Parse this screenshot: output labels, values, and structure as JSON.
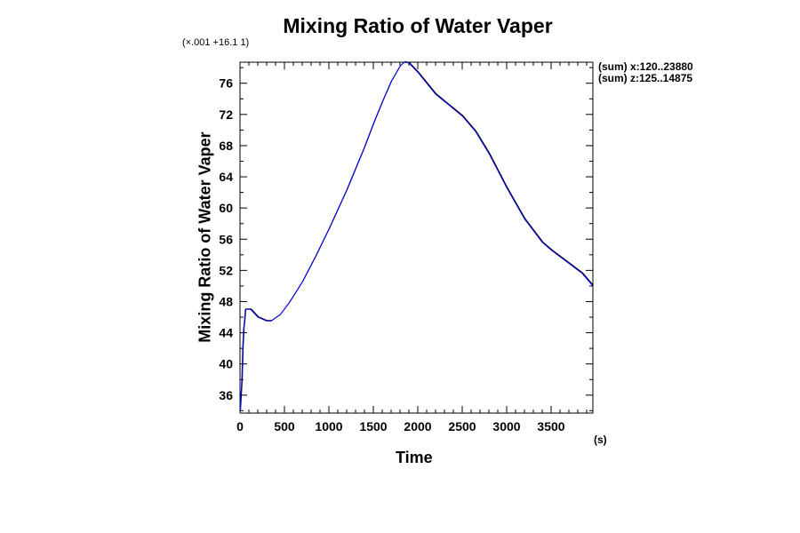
{
  "chart_data": {
    "type": "line",
    "title": "Mixing Ratio of Water Vaper",
    "scale_note": "(×.001 +16.1 1)",
    "annotations": [
      "(sum) x:120..23880",
      "(sum) z:125..14875"
    ],
    "xlabel": "Time",
    "x_unit": "(s)",
    "ylabel": "Mixing Ratio of Water Vaper",
    "xlim": [
      0,
      3970
    ],
    "ylim": [
      33.7,
      78.7
    ],
    "xticks": [
      0,
      500,
      1000,
      1500,
      2000,
      2500,
      3000,
      3500
    ],
    "yticks": [
      36,
      40,
      44,
      48,
      52,
      56,
      60,
      64,
      68,
      72,
      76
    ],
    "grid": false,
    "series": [
      {
        "name": "mixing ratio",
        "color": "#0000ff",
        "x": [
          0,
          20,
          30,
          40,
          50,
          60,
          120,
          200,
          300,
          350,
          450,
          550,
          700,
          850,
          1000,
          1200,
          1400,
          1500,
          1600,
          1700,
          1800,
          1850,
          1900,
          2000,
          2100,
          2200,
          2350,
          2500,
          2650,
          2800,
          3000,
          3200,
          3400,
          3500,
          3700,
          3850,
          3970
        ],
        "y": [
          34,
          38,
          42,
          44.5,
          45.5,
          47,
          47,
          46,
          45.5,
          45.5,
          46.3,
          47.8,
          50.5,
          53.8,
          57.3,
          62.3,
          67.8,
          70.8,
          73.6,
          76.2,
          78.2,
          78.7,
          78.6,
          77.4,
          76,
          74.6,
          73.2,
          71.8,
          69.8,
          67,
          62.6,
          58.6,
          55.6,
          54.6,
          52.9,
          51.6,
          50
        ]
      }
    ]
  }
}
